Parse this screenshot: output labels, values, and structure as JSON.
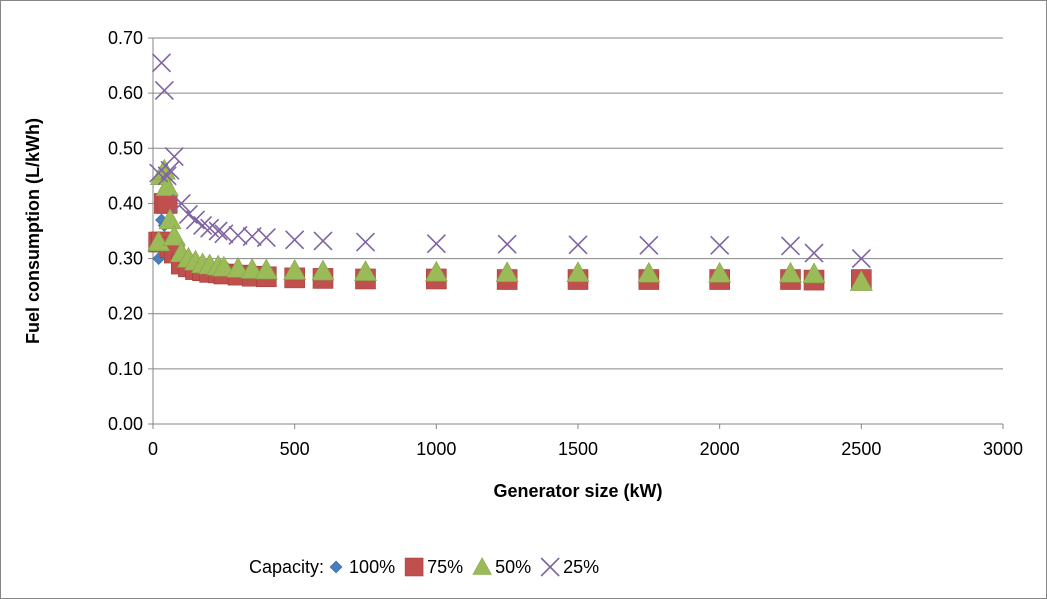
{
  "chart_data": {
    "type": "scatter",
    "title": "",
    "xlabel": "Generator size (kW)",
    "ylabel": "Fuel consumption (L/kWh)",
    "xlim": [
      0,
      3000
    ],
    "ylim": [
      0,
      0.7
    ],
    "x_ticks": [
      "0",
      "500",
      "1000",
      "1500",
      "2000",
      "2500",
      "3000"
    ],
    "y_ticks": [
      "0.00",
      "0.10",
      "0.20",
      "0.30",
      "0.40",
      "0.50",
      "0.60",
      "0.70"
    ],
    "grid": "horizontal",
    "legend": {
      "title": "Capacity:",
      "position": "bottom"
    },
    "series": [
      {
        "name": "100%",
        "marker": "diamond",
        "color": "#4a7ebb",
        "points": [
          [
            20,
            0.3
          ],
          [
            30,
            0.37
          ],
          [
            40,
            0.36
          ],
          [
            50,
            0.32
          ],
          [
            60,
            0.31
          ],
          [
            75,
            0.3
          ],
          [
            100,
            0.28
          ],
          [
            125,
            0.275
          ],
          [
            150,
            0.272
          ],
          [
            175,
            0.27
          ],
          [
            200,
            0.27
          ],
          [
            230,
            0.268
          ],
          [
            250,
            0.268
          ],
          [
            300,
            0.266
          ],
          [
            350,
            0.265
          ],
          [
            400,
            0.264
          ],
          [
            500,
            0.263
          ],
          [
            600,
            0.262
          ],
          [
            750,
            0.262
          ],
          [
            1000,
            0.261
          ],
          [
            1250,
            0.261
          ],
          [
            1500,
            0.261
          ],
          [
            1750,
            0.26
          ],
          [
            2000,
            0.26
          ],
          [
            2250,
            0.26
          ],
          [
            2333,
            0.255
          ],
          [
            2500,
            0.26
          ]
        ]
      },
      {
        "name": "75%",
        "marker": "square",
        "color": "#c0504d",
        "points": [
          [
            20,
            0.33
          ],
          [
            30,
            0.33
          ],
          [
            40,
            0.4
          ],
          [
            50,
            0.4
          ],
          [
            60,
            0.32
          ],
          [
            75,
            0.31
          ],
          [
            100,
            0.29
          ],
          [
            125,
            0.285
          ],
          [
            150,
            0.28
          ],
          [
            175,
            0.278
          ],
          [
            200,
            0.275
          ],
          [
            230,
            0.274
          ],
          [
            250,
            0.272
          ],
          [
            300,
            0.27
          ],
          [
            350,
            0.268
          ],
          [
            400,
            0.267
          ],
          [
            500,
            0.265
          ],
          [
            600,
            0.264
          ],
          [
            750,
            0.263
          ],
          [
            1000,
            0.263
          ],
          [
            1250,
            0.262
          ],
          [
            1500,
            0.262
          ],
          [
            1750,
            0.262
          ],
          [
            2000,
            0.262
          ],
          [
            2250,
            0.262
          ],
          [
            2333,
            0.261
          ],
          [
            2500,
            0.262
          ]
        ]
      },
      {
        "name": "50%",
        "marker": "triangle",
        "color": "#9bbb59",
        "points": [
          [
            20,
            0.33
          ],
          [
            30,
            0.45
          ],
          [
            40,
            0.46
          ],
          [
            50,
            0.43
          ],
          [
            60,
            0.37
          ],
          [
            75,
            0.34
          ],
          [
            100,
            0.31
          ],
          [
            125,
            0.3
          ],
          [
            150,
            0.295
          ],
          [
            175,
            0.29
          ],
          [
            200,
            0.288
          ],
          [
            230,
            0.286
          ],
          [
            250,
            0.284
          ],
          [
            300,
            0.282
          ],
          [
            350,
            0.28
          ],
          [
            400,
            0.279
          ],
          [
            500,
            0.278
          ],
          [
            600,
            0.277
          ],
          [
            750,
            0.276
          ],
          [
            1000,
            0.275
          ],
          [
            1250,
            0.274
          ],
          [
            1500,
            0.274
          ],
          [
            1750,
            0.273
          ],
          [
            2000,
            0.273
          ],
          [
            2250,
            0.273
          ],
          [
            2333,
            0.272
          ],
          [
            2500,
            0.258
          ]
        ]
      },
      {
        "name": "25%",
        "marker": "x",
        "color": "#8064a2",
        "points": [
          [
            20,
            0.455
          ],
          [
            30,
            0.655
          ],
          [
            40,
            0.605
          ],
          [
            50,
            0.45
          ],
          [
            60,
            0.46
          ],
          [
            75,
            0.485
          ],
          [
            100,
            0.4
          ],
          [
            125,
            0.38
          ],
          [
            150,
            0.37
          ],
          [
            175,
            0.36
          ],
          [
            200,
            0.355
          ],
          [
            230,
            0.35
          ],
          [
            250,
            0.345
          ],
          [
            300,
            0.342
          ],
          [
            350,
            0.34
          ],
          [
            400,
            0.338
          ],
          [
            500,
            0.334
          ],
          [
            600,
            0.332
          ],
          [
            750,
            0.33
          ],
          [
            1000,
            0.327
          ],
          [
            1250,
            0.326
          ],
          [
            1500,
            0.325
          ],
          [
            1750,
            0.324
          ],
          [
            2000,
            0.324
          ],
          [
            2250,
            0.323
          ],
          [
            2333,
            0.31
          ],
          [
            2500,
            0.3
          ]
        ]
      }
    ]
  }
}
